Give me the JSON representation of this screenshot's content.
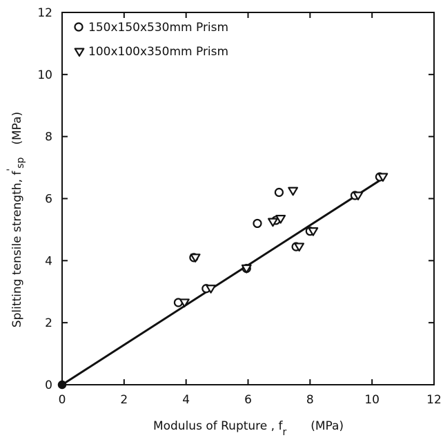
{
  "chart_data": {
    "type": "scatter",
    "x_axis": {
      "label": "Modulus of Rupture ,  f",
      "label_subscript": "r",
      "label_unit": "(MPa)",
      "lim": [
        0,
        12
      ],
      "ticks": [
        0,
        2,
        4,
        6,
        8,
        10,
        12
      ]
    },
    "y_axis": {
      "label": "Splitting tensile strength,  f",
      "label_superscript": "'",
      "label_subscript": "sp",
      "label_unit": "(MPa)",
      "lim": [
        0,
        12
      ],
      "ticks": [
        0,
        2,
        4,
        6,
        8,
        10,
        12
      ]
    },
    "grid": false,
    "legend_position": "top-left",
    "series": [
      {
        "name": "150x150x530mm Prism",
        "marker": "circle",
        "points": [
          [
            3.75,
            2.65
          ],
          [
            4.25,
            4.1
          ],
          [
            4.65,
            3.1
          ],
          [
            5.95,
            3.75
          ],
          [
            6.3,
            5.2
          ],
          [
            6.9,
            5.3
          ],
          [
            7.0,
            6.2
          ],
          [
            7.55,
            4.45
          ],
          [
            8.0,
            4.95
          ],
          [
            9.45,
            6.1
          ],
          [
            10.25,
            6.7
          ],
          [
            0.0,
            0.0
          ]
        ]
      },
      {
        "name": "100x100x350mm Prism",
        "marker": "triangle-down",
        "points": [
          [
            3.95,
            2.65
          ],
          [
            4.3,
            4.1
          ],
          [
            4.8,
            3.1
          ],
          [
            5.95,
            3.75
          ],
          [
            6.8,
            5.25
          ],
          [
            7.05,
            5.35
          ],
          [
            7.45,
            6.25
          ],
          [
            7.65,
            4.45
          ],
          [
            8.1,
            4.95
          ],
          [
            9.55,
            6.1
          ],
          [
            10.35,
            6.7
          ]
        ]
      }
    ],
    "fit_line": {
      "x": [
        0,
        10.35
      ],
      "y": [
        0,
        6.65
      ]
    },
    "colors": {
      "ink": "#111111",
      "background": "#ffffff"
    }
  }
}
